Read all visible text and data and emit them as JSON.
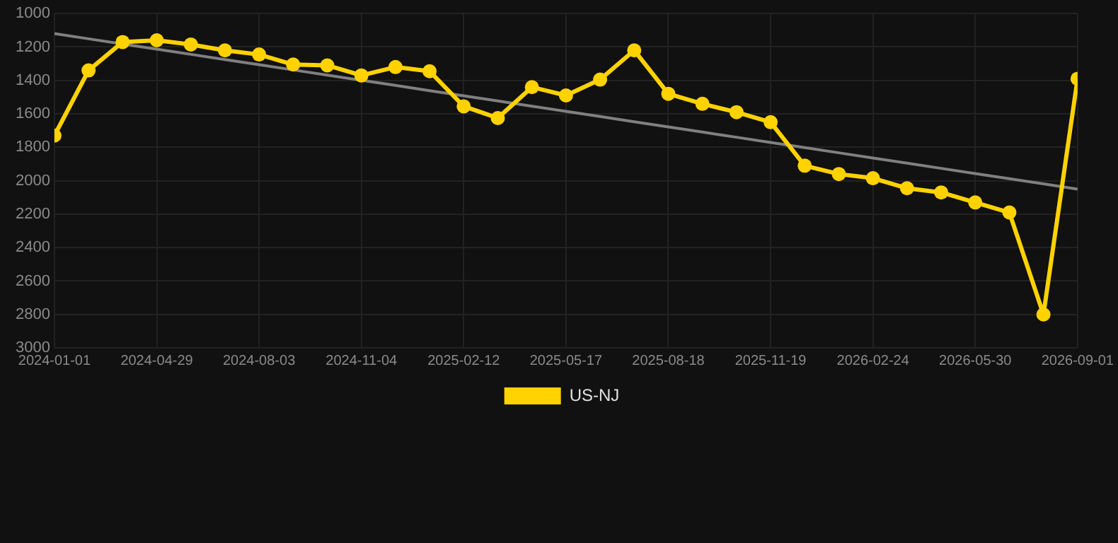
{
  "chart_data": {
    "type": "line",
    "categories": [
      "2024-01-01",
      null,
      null,
      "2024-04-29",
      null,
      null,
      "2024-08-03",
      null,
      null,
      "2024-11-04",
      null,
      null,
      "2025-02-12",
      null,
      null,
      "2025-05-17",
      null,
      null,
      "2025-08-18",
      null,
      null,
      "2025-11-19",
      null,
      null,
      "2026-02-24",
      null,
      null,
      "2026-05-30",
      null,
      null,
      "2026-09-01"
    ],
    "series": [
      {
        "name": "US-NJ",
        "color": "#ffd200",
        "values": [
          1730,
          1340,
          1170,
          1160,
          1185,
          1220,
          1245,
          1305,
          1310,
          1370,
          1320,
          1345,
          1555,
          1625,
          1440,
          1490,
          1395,
          1220,
          1480,
          1540,
          1590,
          1650,
          1910,
          1960,
          1985,
          2045,
          2070,
          2130,
          2190,
          2800,
          1390
        ]
      },
      {
        "type": "line",
        "color": "#808080",
        "values": [
          1120,
          1151,
          1182,
          1213,
          1244,
          1275,
          1306,
          1337,
          1368,
          1399,
          1430,
          1461,
          1492,
          1523,
          1554,
          1585,
          1616,
          1647,
          1678,
          1709,
          1740,
          1771,
          1802,
          1833,
          1864,
          1895,
          1926,
          1957,
          1988,
          2019,
          2050
        ],
        "marker": "none"
      }
    ],
    "ylim": [
      3000,
      1000
    ],
    "yticks": [
      1000,
      1200,
      1400,
      1600,
      1800,
      2000,
      2200,
      2400,
      2600,
      2800,
      3000
    ],
    "grid": true,
    "legend": "bottom",
    "marker": "circle"
  }
}
